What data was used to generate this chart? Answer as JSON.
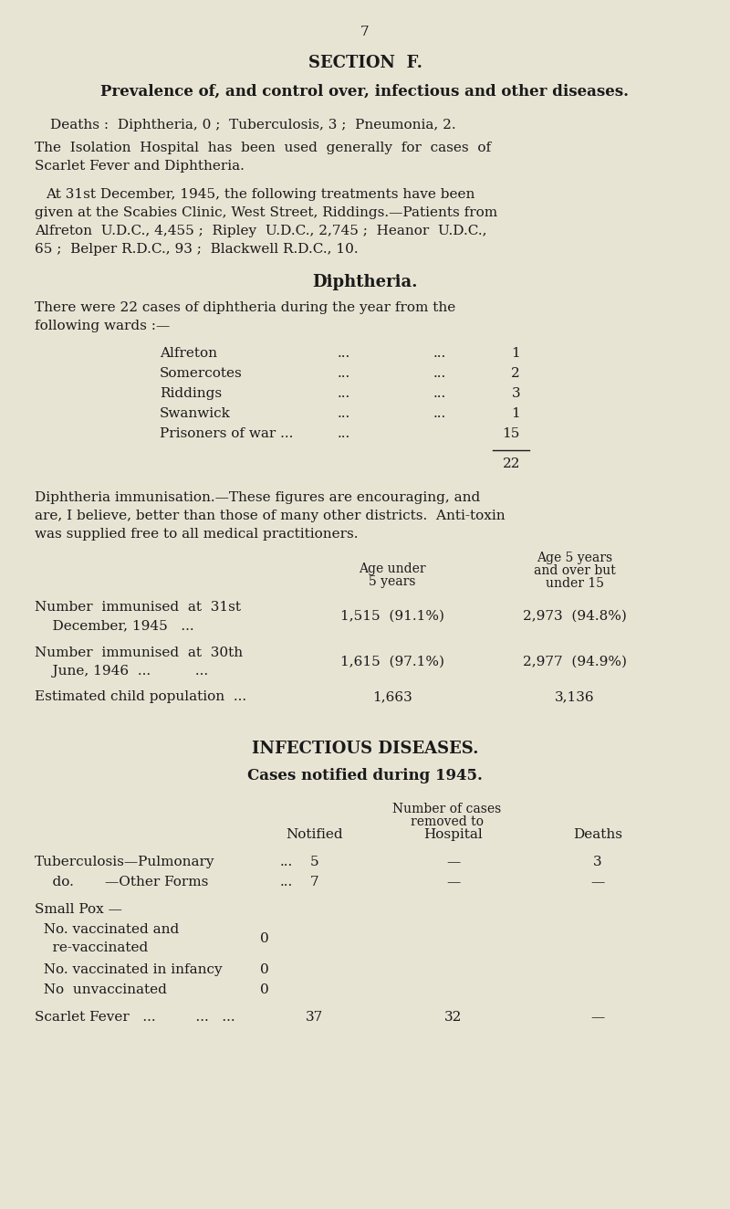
{
  "bg_color": "#e8e4d4",
  "text_color": "#1a1a1a",
  "page_number": "7",
  "section_title": "SECTION  F.",
  "subtitle": "Prevalence of, and control over, infectious and other diseases.",
  "deaths_line": "Deaths :  Diphtheria, 0 ;  Tuberculosis, 3 ;  Pneumonia, 2.",
  "isolation_line1": "The  Isolation  Hospital  has  been  used  generally  for  cases  of",
  "isolation_line2": "Scarlet Fever and Diphtheria.",
  "scabies_line1": "At 31st December, 1945, the following treatments have been",
  "scabies_line2": "given at the Scabies Clinic, West Street, Riddings.—Patients from",
  "scabies_line3": "Alfreton  U.D.C., 4,455 ;  Ripley  U.D.C., 2,745 ;  Heanor  U.D.C.,",
  "scabies_line4": "65 ;  Belper R.D.C., 93 ;  Blackwell R.D.C., 10.",
  "diphtheria_heading": "Diphtheria.",
  "diph_intro1": "There were 22 cases of diphtheria during the year from the",
  "diph_intro2": "following wards :—",
  "wards_total": "22",
  "immun_para1": "Diphtheria immunisation.—These figures are encouraging, and",
  "immun_para2": "are, I believe, better than those of many other districts.  Anti-toxin",
  "immun_para3": "was supplied free to all medical practitioners.",
  "inf_heading": "INFECTIOUS DISEASES.",
  "inf_subheading": "Cases notified during 1945."
}
